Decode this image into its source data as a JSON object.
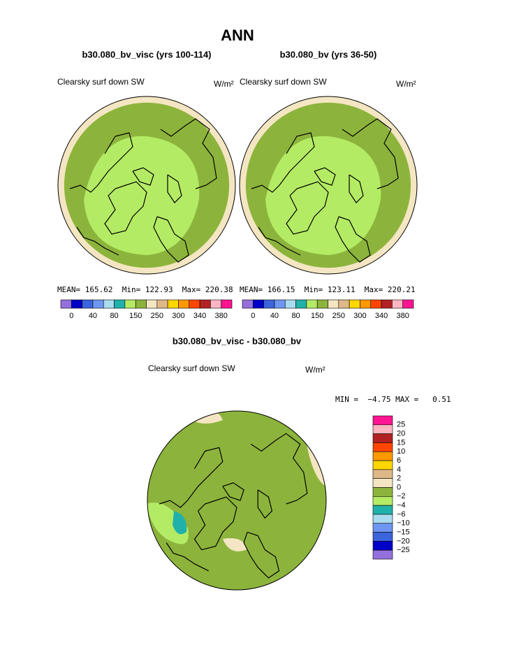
{
  "header": {
    "title": "ANN"
  },
  "panels": [
    {
      "title": "b30.080_bv_visc (yrs 100-114)",
      "variable": "Clearsky surf down SW",
      "units": "W/m²",
      "stats": "MEAN= 165.62  Min= 122.93  Max= 220.38",
      "colorbar_labels": [
        "0",
        "40",
        "80",
        "150",
        "250",
        "300",
        "340",
        "380"
      ]
    },
    {
      "title": "b30.080_bv (yrs 36-50)",
      "variable": "Clearsky surf down SW",
      "units": "W/m²",
      "stats": "MEAN= 166.15  Min= 123.11  Max= 220.21",
      "colorbar_labels": [
        "0",
        "40",
        "80",
        "150",
        "250",
        "300",
        "340",
        "380"
      ]
    }
  ],
  "difference": {
    "title": "b30.080_bv_visc - b30.080_bv",
    "variable": "Clearsky surf down SW",
    "units": "W/m²",
    "stats": "MIN =  −4.75 MAX =   0.51",
    "colorbar_labels": [
      "25",
      "20",
      "15",
      "10",
      "6",
      "4",
      "2",
      "0",
      "−2",
      "−4",
      "−6",
      "−10",
      "−15",
      "−20",
      "−25"
    ]
  },
  "colors": [
    "#9370db",
    "#0000c8",
    "#3c64dc",
    "#6e96f0",
    "#aadcf0",
    "#20b2aa",
    "#b4eb64",
    "#8cb43c",
    "#f5e6c3",
    "#deb887",
    "#ffd700",
    "#ff9900",
    "#ff4500",
    "#b22222",
    "#ffb6c1",
    "#ff1493"
  ]
}
